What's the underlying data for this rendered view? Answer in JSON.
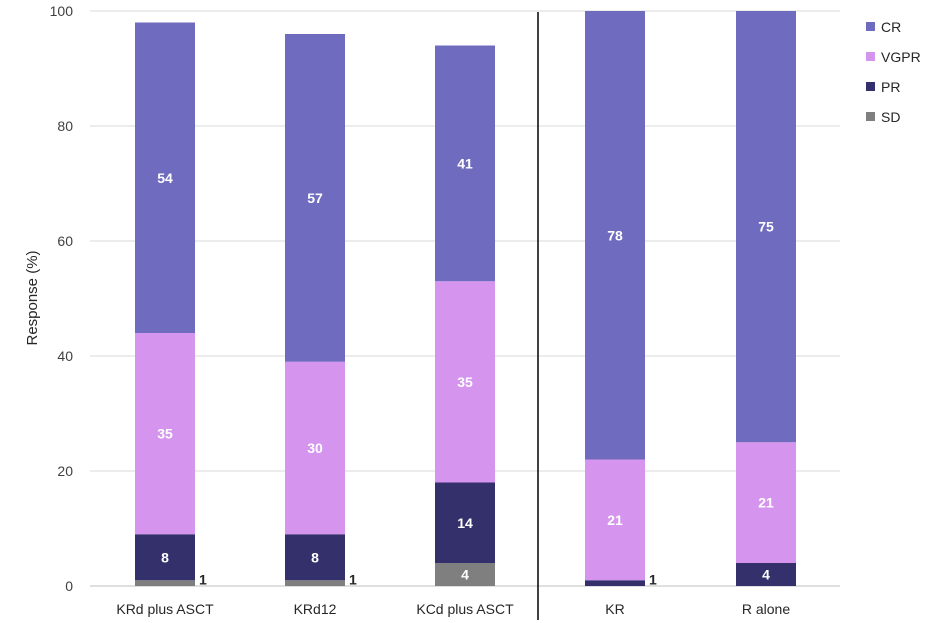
{
  "chart_data": {
    "type": "bar",
    "stacked": true,
    "title": "",
    "xlabel": "",
    "ylabel": "Response (%)",
    "ylim": [
      0,
      100
    ],
    "yticks": [
      0,
      20,
      40,
      60,
      80,
      100
    ],
    "grid": true,
    "legend_position": "top-right",
    "categories": [
      "KRd plus ASCT",
      "KRd12",
      "KCd plus ASCT",
      "KR",
      "R alone"
    ],
    "group_separator_after_category": "KCd plus ASCT",
    "series": [
      {
        "name": "SD",
        "color": "#7f7f7f",
        "values": [
          1,
          1,
          4,
          0,
          0
        ]
      },
      {
        "name": "PR",
        "color": "#33306b",
        "values": [
          8,
          8,
          14,
          1,
          4
        ]
      },
      {
        "name": "VGPR",
        "color": "#d595ee",
        "values": [
          35,
          30,
          35,
          21,
          21
        ]
      },
      {
        "name": "CR",
        "color": "#6f6bbf",
        "values": [
          54,
          57,
          41,
          78,
          75
        ]
      }
    ],
    "legend_order": [
      "CR",
      "VGPR",
      "PR",
      "SD"
    ],
    "data_labels": [
      [
        {
          "series": "SD",
          "text": "1",
          "placement": "outside-right"
        },
        {
          "series": "PR",
          "text": "8"
        },
        {
          "series": "VGPR",
          "text": "35"
        },
        {
          "series": "CR",
          "text": "54"
        }
      ],
      [
        {
          "series": "SD",
          "text": "1",
          "placement": "outside-right"
        },
        {
          "series": "PR",
          "text": "8"
        },
        {
          "series": "VGPR",
          "text": "30"
        },
        {
          "series": "CR",
          "text": "57"
        }
      ],
      [
        {
          "series": "SD",
          "text": "4"
        },
        {
          "series": "PR",
          "text": "14"
        },
        {
          "series": "VGPR",
          "text": "35"
        },
        {
          "series": "CR",
          "text": "41"
        }
      ],
      [
        {
          "series": "PR",
          "text": "1",
          "placement": "outside-right"
        },
        {
          "series": "VGPR",
          "text": "21"
        },
        {
          "series": "CR",
          "text": "78"
        }
      ],
      [
        {
          "series": "PR",
          "text": "4"
        },
        {
          "series": "VGPR",
          "text": "21"
        },
        {
          "series": "CR",
          "text": "75"
        }
      ]
    ]
  }
}
